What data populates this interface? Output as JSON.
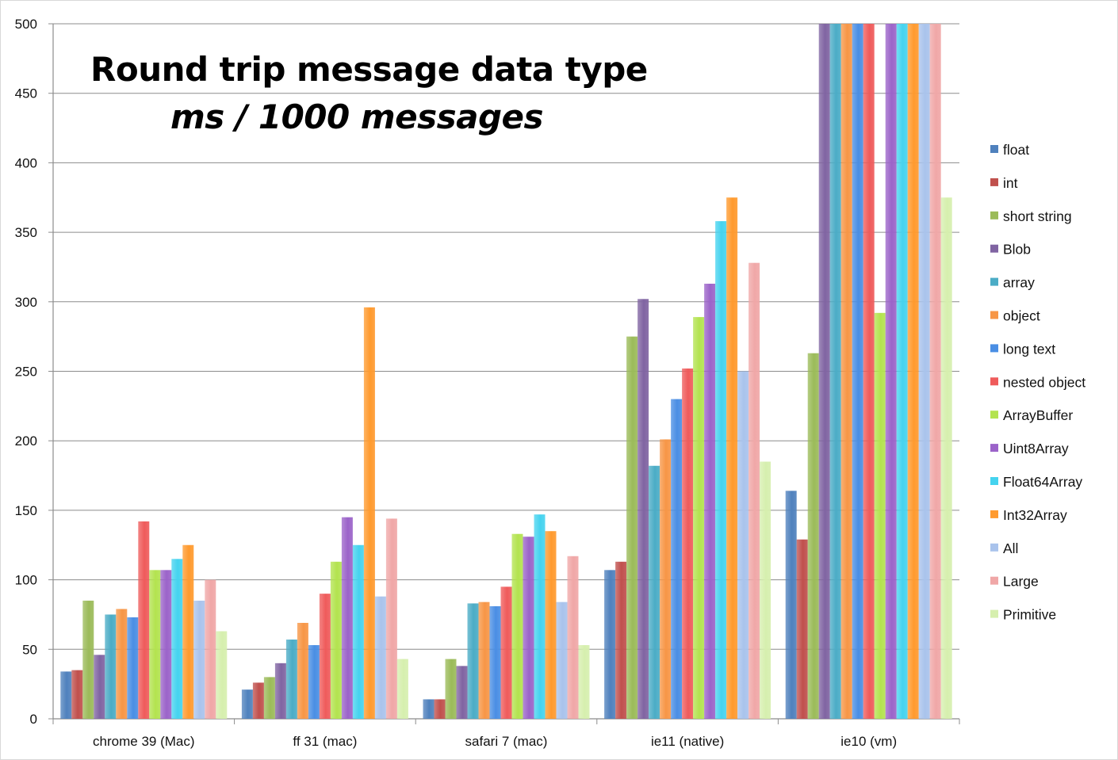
{
  "chart_data": {
    "type": "bar",
    "title": "Round trip message data type",
    "subtitle": "ms / 1000 messages",
    "xlabel": "",
    "ylabel": "",
    "ylim": [
      0,
      500
    ],
    "yticks": [
      "0",
      "50",
      "100",
      "150",
      "200",
      "250",
      "300",
      "350",
      "400",
      "450",
      "500"
    ],
    "grid": true,
    "legend_position": "right",
    "categories": [
      "chrome 39 (Mac)",
      "ff 31 (mac)",
      "safari 7 (mac)",
      "ie11 (native)",
      "ie10 (vm)"
    ],
    "series": [
      {
        "name": "float",
        "color": "#4f81bd",
        "values": [
          34,
          21,
          14,
          107,
          164
        ]
      },
      {
        "name": "int",
        "color": "#c0504d",
        "values": [
          35,
          26,
          14,
          113,
          129
        ]
      },
      {
        "name": "short string",
        "color": "#9bbb59",
        "values": [
          85,
          30,
          43,
          275,
          263
        ]
      },
      {
        "name": "Blob",
        "color": "#8064a2",
        "values": [
          46,
          40,
          38,
          302,
          500
        ]
      },
      {
        "name": "array",
        "color": "#4bacc6",
        "values": [
          75,
          57,
          83,
          182,
          500
        ]
      },
      {
        "name": "object",
        "color": "#f79646",
        "values": [
          79,
          69,
          84,
          201,
          500
        ]
      },
      {
        "name": "long text",
        "color": "#4a8ee4",
        "values": [
          73,
          53,
          81,
          230,
          500
        ]
      },
      {
        "name": "nested object",
        "color": "#ef5b5b",
        "values": [
          142,
          90,
          95,
          252,
          500
        ]
      },
      {
        "name": "ArrayBuffer",
        "color": "#b3e34f",
        "values": [
          107,
          113,
          133,
          289,
          292
        ]
      },
      {
        "name": "Uint8Array",
        "color": "#9b63c9",
        "values": [
          107,
          145,
          131,
          313,
          500
        ]
      },
      {
        "name": "Float64Array",
        "color": "#45d3ef",
        "values": [
          115,
          125,
          147,
          358,
          500
        ]
      },
      {
        "name": "Int32Array",
        "color": "#ff9a2e",
        "values": [
          125,
          296,
          135,
          375,
          500
        ]
      },
      {
        "name": "All",
        "color": "#a9c3ec",
        "values": [
          85,
          88,
          84,
          250,
          500
        ]
      },
      {
        "name": "Large",
        "color": "#f0a7a7",
        "values": [
          100,
          144,
          117,
          328,
          500
        ]
      },
      {
        "name": "Primitive",
        "color": "#d6efae",
        "values": [
          63,
          43,
          53,
          185,
          375
        ]
      }
    ]
  }
}
